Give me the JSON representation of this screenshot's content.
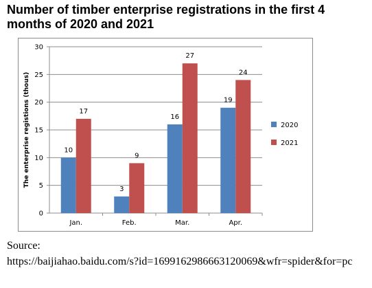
{
  "title": "Number of timber enterprise registrations in the first 4 months of 2020 and 2021",
  "source": {
    "label": "Source:",
    "url": "https://baijiahao.baidu.com/s?id=1699162986663120069&wfr=spider&for=pc"
  },
  "colors": {
    "series_2020": "#4f81bd",
    "series_2021": "#c0504d",
    "grid": "#8c8c8c"
  },
  "chart_data": {
    "type": "bar",
    "title": "Number of timber enterprise registrations in the first 4 months of 2020 and 2021",
    "xlabel": "",
    "ylabel": "The enterprise registions (thous)",
    "categories": [
      "Jan.",
      "Feb.",
      "Mar.",
      "Apr."
    ],
    "series": [
      {
        "name": "2020",
        "values": [
          10,
          3,
          16,
          19
        ]
      },
      {
        "name": "2021",
        "values": [
          17,
          9,
          27,
          24
        ]
      }
    ],
    "ylim": [
      0,
      30
    ],
    "yticks": [
      0,
      5,
      10,
      15,
      20,
      25,
      30
    ],
    "grid": true,
    "legend": "right",
    "data_labels": true
  }
}
